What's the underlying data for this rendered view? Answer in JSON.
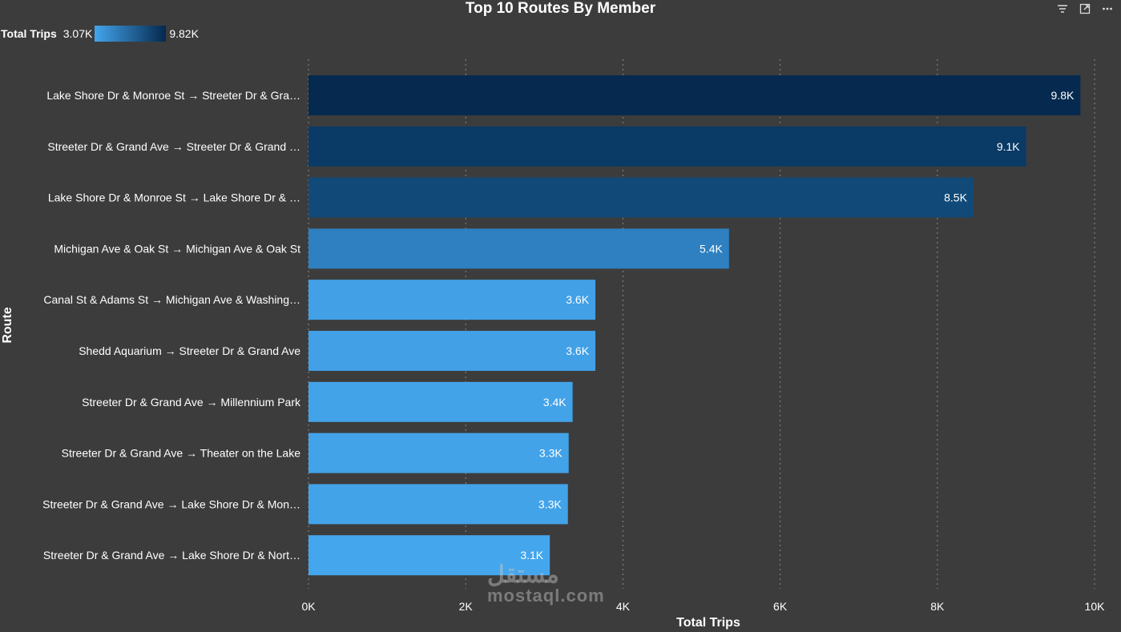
{
  "chart_data": {
    "type": "bar",
    "orientation": "horizontal",
    "title": "Top 10 Routes By Member",
    "xlabel": "Total Trips",
    "ylabel": "Route",
    "xlim": [
      0,
      10000
    ],
    "x_ticks": [
      {
        "value": 0,
        "label": "0K"
      },
      {
        "value": 2000,
        "label": "2K"
      },
      {
        "value": 4000,
        "label": "4K"
      },
      {
        "value": 6000,
        "label": "6K"
      },
      {
        "value": 8000,
        "label": "8K"
      },
      {
        "value": 10000,
        "label": "10K"
      }
    ],
    "grid": "vertical-dotted",
    "legend": {
      "title": "Total Trips",
      "min_label": "3.07K",
      "max_label": "9.82K",
      "min_color": "#42a5ec",
      "max_color": "#06284e",
      "placement": "top-left"
    },
    "categories": [
      "Lake Shore Dr & Monroe St → Streeter Dr & Gra…",
      "Streeter Dr & Grand Ave → Streeter Dr & Grand …",
      "Lake Shore Dr & Monroe St → Lake Shore Dr & …",
      "Michigan Ave & Oak St → Michigan Ave & Oak St",
      "Canal St & Adams St → Michigan Ave & Washing…",
      "Shedd Aquarium → Streeter Dr & Grand Ave",
      "Streeter Dr & Grand Ave → Millennium Park",
      "Streeter Dr & Grand Ave → Theater on the Lake",
      "Streeter Dr & Grand Ave → Lake Shore Dr & Mon…",
      "Streeter Dr & Grand Ave → Lake Shore Dr & Nort…"
    ],
    "values": [
      9820,
      9130,
      8460,
      5350,
      3650,
      3650,
      3360,
      3310,
      3300,
      3070
    ],
    "data_labels": [
      "9.8K",
      "9.1K",
      "8.5K",
      "5.4K",
      "3.6K",
      "3.6K",
      "3.4K",
      "3.3K",
      "3.3K",
      "3.1K"
    ],
    "colors": [
      "#062a4f",
      "#0a3a66",
      "#114a78",
      "#2e80c0",
      "#42a0e6",
      "#42a0e6",
      "#43a3e9",
      "#43a3e9",
      "#43a3e9",
      "#44a6ec"
    ]
  },
  "icons": {
    "filter": "filter-icon",
    "focus": "focus-mode-icon",
    "more": "more-options-icon"
  },
  "watermark": {
    "ar": "مستقل",
    "en": "mostaql.com"
  }
}
